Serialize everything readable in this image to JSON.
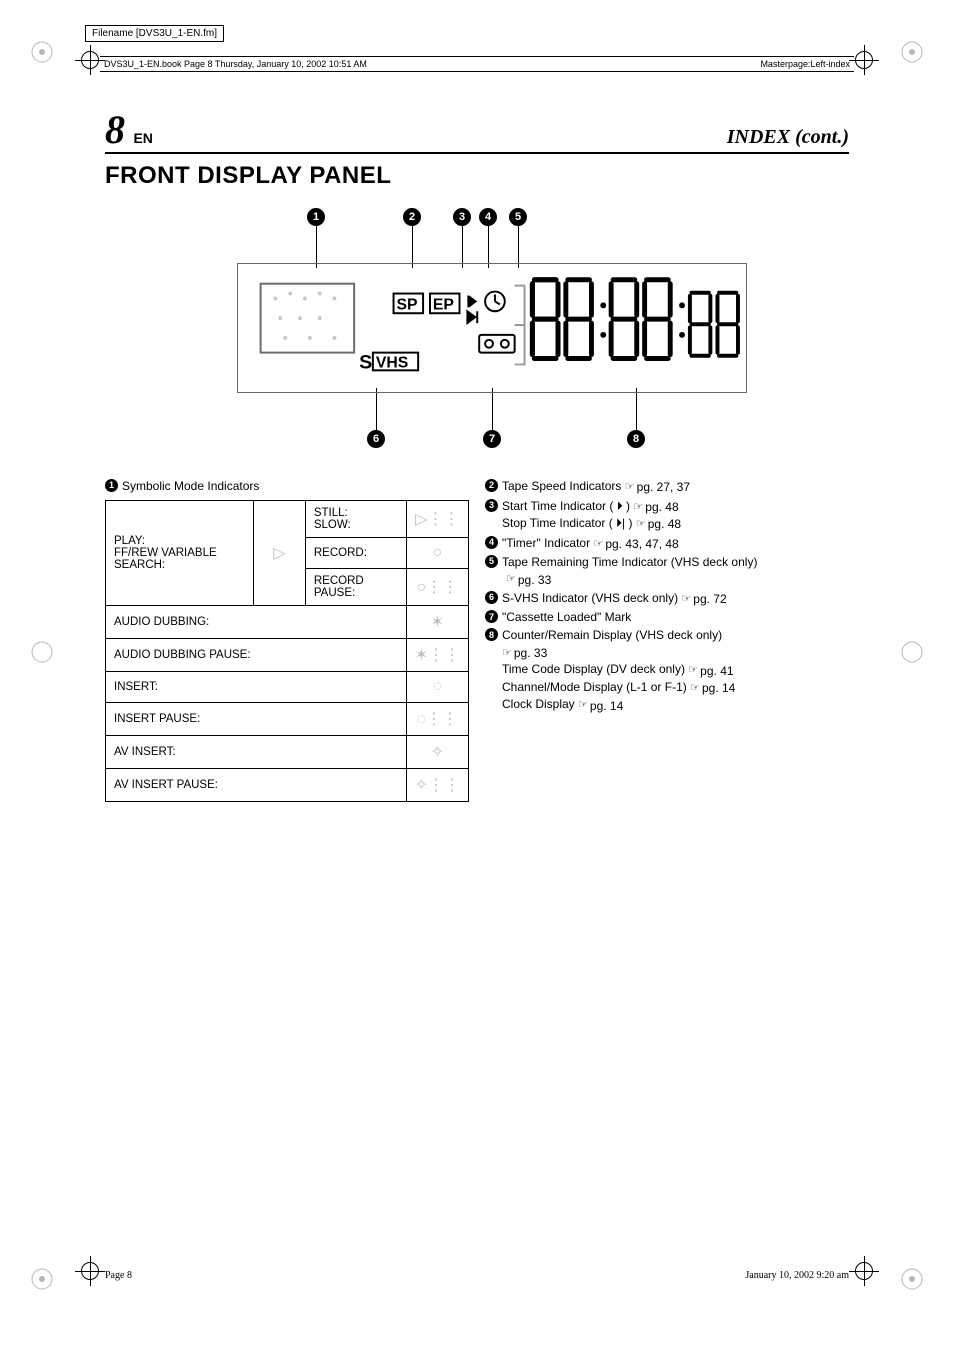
{
  "meta": {
    "filename_box": "Filename [DVS3U_1-EN.fm]",
    "book_meta_left": "DVS3U_1-EN.book  Page 8  Thursday, January 10, 2002  10:51 AM",
    "book_meta_right": "Masterpage:Left-index",
    "footer_left": "Page 8",
    "footer_right": "January 10, 2002 9:20 am"
  },
  "header": {
    "page_num": "8",
    "lang": "EN",
    "index": "INDEX (cont.)"
  },
  "section_title": "FRONT DISPLAY PANEL",
  "figure": {
    "top_callouts": [
      "1",
      "2",
      "3",
      "4",
      "5"
    ],
    "bottom_callouts": [
      "6",
      "7",
      "8"
    ],
    "sp_label": "SP",
    "ep_label": "EP",
    "svhs_label_s": "S",
    "svhs_label_box": "VHS",
    "clock": "88:88:88"
  },
  "left_col": {
    "heading_num": "1",
    "heading_text": "Symbolic Mode Indicators",
    "table": {
      "row1_left": "PLAY:\nFF/REW VARIABLE SEARCH:",
      "row1_mid_icon": "▷",
      "row1_r1": "STILL:\nSLOW:",
      "row1_r1_icon": "▷⋮⋮",
      "row1_r2": "RECORD:",
      "row1_r2_icon": "○",
      "row1_r3": "RECORD PAUSE:",
      "row1_r3_icon": "○⋮⋮",
      "row2": "AUDIO DUBBING:",
      "row2_icon": "✶",
      "row3": "AUDIO DUBBING PAUSE:",
      "row3_icon": "✶⋮⋮",
      "row4": "INSERT:",
      "row4_icon": "◌",
      "row5": "INSERT PAUSE:",
      "row5_icon": "◌⋮⋮",
      "row6": "AV INSERT:",
      "row6_icon": "✧",
      "row7": "AV INSERT PAUSE:",
      "row7_icon": "✧⋮⋮"
    }
  },
  "right_col": {
    "items": [
      {
        "num": "2",
        "text": "Tape Speed Indicators",
        "pg": "pg. 27, 37"
      },
      {
        "num": "3",
        "text": "Start Time Indicator ( ⏵ )",
        "pg": "pg. 48",
        "sub": "Stop Time Indicator ( ⏵| )",
        "sub_pg": "pg. 48"
      },
      {
        "num": "4",
        "text": "\"Timer\" Indicator",
        "pg": "pg. 43, 47, 48"
      },
      {
        "num": "5",
        "text": "Tape Remaining Time Indicator (VHS deck only)",
        "sub_pg_only": "pg. 33"
      },
      {
        "num": "6",
        "text": "S-VHS Indicator (VHS deck only)",
        "pg": "pg. 72"
      },
      {
        "num": "7",
        "text": "\"Cassette Loaded\" Mark"
      },
      {
        "num": "8",
        "text": "Counter/Remain Display (VHS deck only)",
        "lines": [
          {
            "t": "",
            "pg": "pg. 33"
          },
          {
            "t": "Time Code Display (DV deck only)",
            "pg": "pg. 41"
          },
          {
            "t": "Channel/Mode Display (L-1 or F-1)",
            "pg": "pg. 14"
          },
          {
            "t": "Clock Display",
            "pg": "pg. 14"
          }
        ]
      }
    ],
    "hand": "☞"
  }
}
